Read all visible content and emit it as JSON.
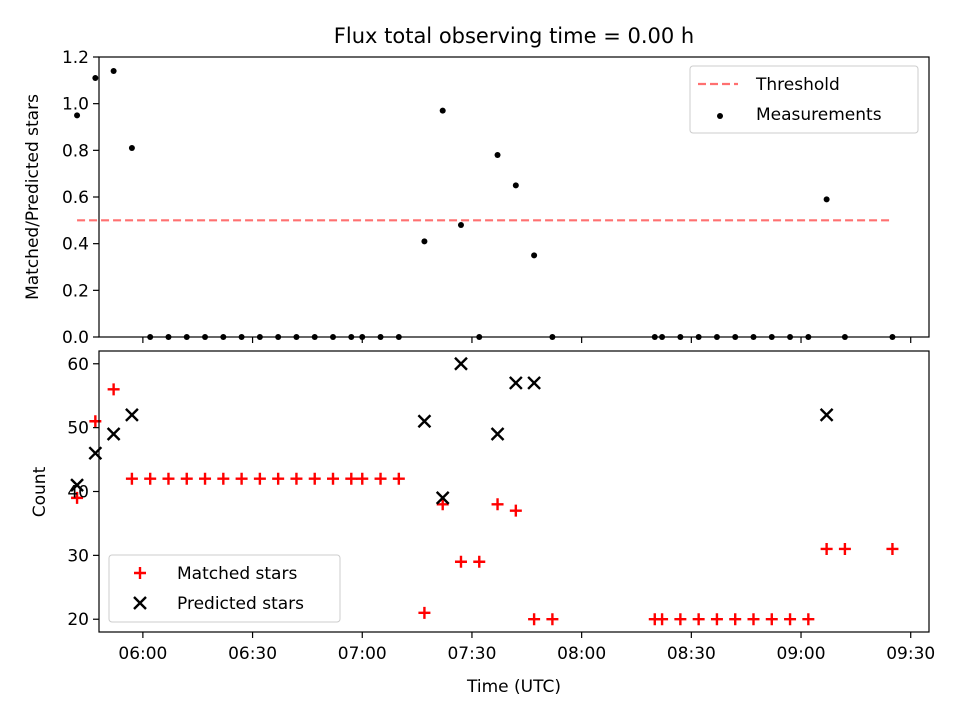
{
  "figure_title": "Flux total observing time = 0.00 h",
  "x_axis": {
    "label": "Time (UTC)",
    "range": [
      "05:48",
      "09:35"
    ],
    "ticks": [
      "06:00",
      "06:30",
      "07:00",
      "07:30",
      "08:00",
      "08:30",
      "09:00",
      "09:30"
    ]
  },
  "chart_data": [
    {
      "type": "scatter",
      "title": "Flux total observing time = 0.00 h",
      "xlabel": "",
      "ylabel": "Matched/Predicted stars",
      "ylim": [
        0,
        1.2
      ],
      "yticks": [
        "0.0",
        "0.2",
        "0.4",
        "0.6",
        "0.8",
        "1.0",
        "1.2"
      ],
      "legend": "top-right",
      "series": [
        {
          "name": "Threshold",
          "kind": "dashed-line",
          "color": "#ff7070",
          "x": [
            "05:42",
            "09:25"
          ],
          "y": [
            0.5,
            0.5
          ]
        },
        {
          "name": "Measurements",
          "kind": "dots",
          "color": "#000000",
          "x": [
            "05:42",
            "05:47",
            "05:52",
            "05:57",
            "06:02",
            "06:07",
            "06:12",
            "06:17",
            "06:22",
            "06:27",
            "06:32",
            "06:37",
            "06:42",
            "06:47",
            "06:52",
            "06:57",
            "07:00",
            "07:05",
            "07:10",
            "07:17",
            "07:22",
            "07:27",
            "07:32",
            "07:37",
            "07:42",
            "07:47",
            "07:52",
            "08:20",
            "08:22",
            "08:27",
            "08:32",
            "08:37",
            "08:42",
            "08:47",
            "08:52",
            "08:57",
            "09:02",
            "09:07",
            "09:12",
            "09:25"
          ],
          "y": [
            0.95,
            1.11,
            1.14,
            0.81,
            0,
            0,
            0,
            0,
            0,
            0,
            0,
            0,
            0,
            0,
            0,
            0,
            0,
            0,
            0,
            0.41,
            0.97,
            0.48,
            0,
            0.78,
            0.65,
            0.35,
            0,
            0,
            0,
            0,
            0,
            0,
            0,
            0,
            0,
            0,
            0,
            0.59,
            0,
            0
          ]
        }
      ]
    },
    {
      "type": "scatter",
      "xlabel": "Time (UTC)",
      "ylabel": "Count",
      "ylim": [
        18,
        62
      ],
      "yticks": [
        "20",
        "30",
        "40",
        "50",
        "60"
      ],
      "legend": "bottom-left",
      "series": [
        {
          "name": "Matched stars",
          "marker": "plus",
          "color": "#ff0000",
          "x": [
            "05:42",
            "05:47",
            "05:52",
            "05:57",
            "06:02",
            "06:07",
            "06:12",
            "06:17",
            "06:22",
            "06:27",
            "06:32",
            "06:37",
            "06:42",
            "06:47",
            "06:52",
            "06:57",
            "07:00",
            "07:05",
            "07:10",
            "07:17",
            "07:22",
            "07:27",
            "07:32",
            "07:37",
            "07:42",
            "07:47",
            "07:52",
            "08:20",
            "08:22",
            "08:27",
            "08:32",
            "08:37",
            "08:42",
            "08:47",
            "08:52",
            "08:57",
            "09:02",
            "09:07",
            "09:12",
            "09:25"
          ],
          "y": [
            39,
            51,
            56,
            42,
            42,
            42,
            42,
            42,
            42,
            42,
            42,
            42,
            42,
            42,
            42,
            42,
            42,
            42,
            42,
            21,
            38,
            29,
            29,
            38,
            37,
            20,
            20,
            20,
            20,
            20,
            20,
            20,
            20,
            20,
            20,
            20,
            20,
            31,
            31,
            31
          ]
        },
        {
          "name": "Predicted stars",
          "marker": "x",
          "color": "#000000",
          "x": [
            "05:42",
            "05:47",
            "05:52",
            "05:57",
            "07:17",
            "07:22",
            "07:27",
            "07:37",
            "07:42",
            "07:47",
            "09:07"
          ],
          "y": [
            41,
            46,
            49,
            52,
            51,
            39,
            60,
            49,
            57,
            57,
            52
          ]
        }
      ]
    }
  ]
}
